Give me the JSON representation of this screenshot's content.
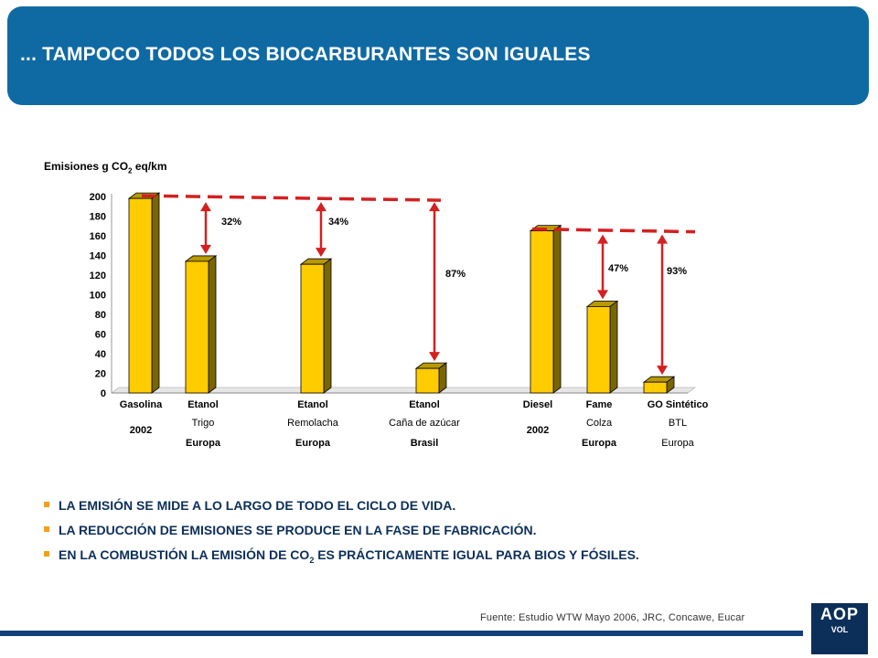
{
  "header": {
    "title": "... TAMPOCO TODOS LOS BIOCARBURANTES SON IGUALES"
  },
  "chart_data": {
    "type": "bar",
    "ylabel_prefix": "Emisiones g CO",
    "ylabel_sub": "2",
    "ylabel_suffix": " eq/km",
    "ylim": [
      0,
      200
    ],
    "yticks": [
      "0",
      "20",
      "40",
      "60",
      "80",
      "100",
      "120",
      "140",
      "160",
      "180",
      "200"
    ],
    "bars": [
      {
        "name": "Gasolina",
        "line2": "2002",
        "line3": "",
        "value": 198
      },
      {
        "name": "Etanol",
        "line2": "Trigo",
        "line3": "Europa",
        "value": 134
      },
      {
        "name": "Etanol",
        "line2": "Remolacha",
        "line3": "Europa",
        "value": 131
      },
      {
        "name": "Etanol",
        "line2": "Caña de azúcar",
        "line3": "Brasil",
        "value": 25
      },
      {
        "name": "Diesel",
        "line2": "2002",
        "line3": "",
        "value": 165
      },
      {
        "name": "Fame",
        "line2": "Colza",
        "line3": "Europa",
        "value": 88
      },
      {
        "name": "GO Sintético",
        "line2": "BTL",
        "line3": "Europa",
        "value": 11
      }
    ],
    "reductions": [
      {
        "bar": 1,
        "label": "32%"
      },
      {
        "bar": 2,
        "label": "34%"
      },
      {
        "bar": 3,
        "label": "87%"
      },
      {
        "bar": 5,
        "label": "47%"
      },
      {
        "bar": 6,
        "label": "93%"
      }
    ],
    "colors": {
      "bar_front": "#ffcc00",
      "bar_side": "#7a6600",
      "bar_top": "#b89a00",
      "arrow": "#d42020"
    }
  },
  "bullets": [
    {
      "text": "LA EMISIÓN SE MIDE A LO LARGO DE TODO EL CICLO DE VIDA."
    },
    {
      "text": "LA REDUCCIÓN DE EMISIONES SE PRODUCE EN LA FASE DE FABRICACIÓN."
    },
    {
      "text_before": "EN LA COMBUSTIÓN LA EMISIÓN DE CO",
      "sub": "2",
      "text_after": " ES PRÁCTICAMENTE IGUAL PARA BIOS Y FÓSILES."
    }
  ],
  "source": "Fuente: Estudio  WTW  Mayo 2006,  JRC, Concawe,  Eucar",
  "logo": {
    "text": "AOP",
    "sub": "VOL"
  }
}
